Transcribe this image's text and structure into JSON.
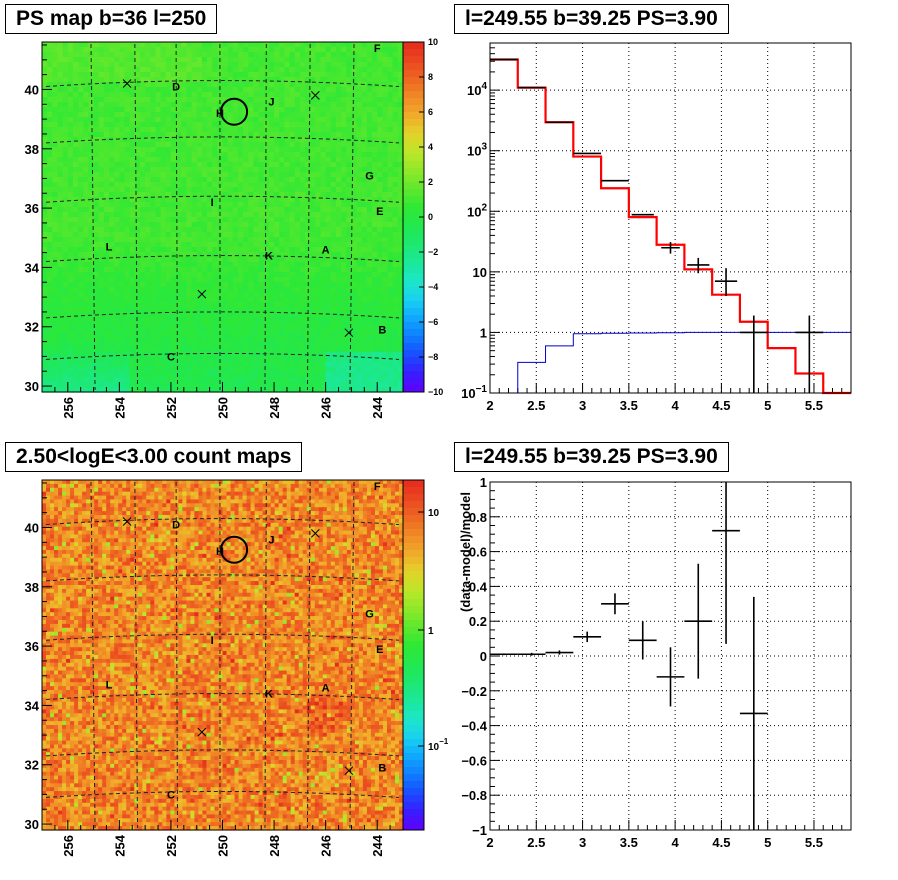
{
  "panels": {
    "map_top": {
      "title": "PS map b=36 l=250"
    },
    "spectrum": {
      "title": "l=249.55 b=39.25 PS=3.90"
    },
    "map_bottom": {
      "title": "2.50<logE<3.00 count maps"
    },
    "residual": {
      "title": "l=249.55 b=39.25 PS=3.90"
    }
  },
  "chart_data": [
    {
      "type": "heatmap",
      "title": "PS map b=36 l=250",
      "xlim": [
        257,
        243
      ],
      "ylim": [
        29.8,
        41.6
      ],
      "x_ticks": [
        "256",
        "254",
        "252",
        "250",
        "248",
        "246",
        "244"
      ],
      "y_ticks": [
        "30",
        "32",
        "34",
        "36",
        "38",
        "40"
      ],
      "colorbar": {
        "range": [
          -10,
          10
        ],
        "ticks": [
          "10",
          "8",
          "6",
          "4",
          "2",
          "0",
          "−2",
          "−4",
          "−6",
          "−8",
          "−10"
        ]
      },
      "sources": [
        {
          "label": "A",
          "l": 246.0,
          "b": 34.6
        },
        {
          "label": "B",
          "l": 243.8,
          "b": 31.9
        },
        {
          "label": "C",
          "l": 252.0,
          "b": 31.0
        },
        {
          "label": "D",
          "l": 251.8,
          "b": 40.1
        },
        {
          "label": "E",
          "l": 243.9,
          "b": 35.9
        },
        {
          "label": "F",
          "l": 244.0,
          "b": 41.4
        },
        {
          "label": "G",
          "l": 244.3,
          "b": 37.1
        },
        {
          "label": "H",
          "l": 250.1,
          "b": 39.2
        },
        {
          "label": "I",
          "l": 250.4,
          "b": 36.2
        },
        {
          "label": "J",
          "l": 248.1,
          "b": 39.6
        },
        {
          "label": "K",
          "l": 248.2,
          "b": 34.4
        },
        {
          "label": "L",
          "l": 254.4,
          "b": 34.7
        }
      ],
      "crosses": [
        [
          253.7,
          40.2
        ],
        [
          250.8,
          33.1
        ],
        [
          246.4,
          39.8
        ],
        [
          245.1,
          31.8
        ]
      ],
      "circle": {
        "l": 249.55,
        "b": 39.25
      }
    },
    {
      "type": "line",
      "title": "l=249.55 b=39.25 PS=3.90",
      "x_ticks": [
        "2",
        "2.5",
        "3",
        "3.5",
        "4",
        "4.5",
        "5",
        "5.5"
      ],
      "y_ticks": [
        "10^-1",
        "1",
        "10",
        "10^2",
        "10^3",
        "10^4"
      ],
      "xlim": [
        2.0,
        5.9
      ],
      "ylim": [
        0.1,
        60000
      ],
      "log_y": true,
      "grid": true,
      "bin_edges": [
        2.0,
        2.3,
        2.6,
        2.9,
        3.2,
        3.5,
        3.8,
        4.1,
        4.4,
        4.7,
        5.0,
        5.3,
        5.6,
        5.9
      ],
      "series": [
        {
          "kind": "model-histogram",
          "color": "#ff0000",
          "values": [
            32000,
            11000,
            2950,
            800,
            240,
            80,
            28,
            11,
            4.2,
            1.5,
            0.55,
            0.21,
            0.08
          ]
        },
        {
          "kind": "secondary-model",
          "color": "#0000cc",
          "values": [
            0.1,
            0.32,
            0.6,
            0.95,
            0.97,
            0.98,
            0.99,
            1.0,
            1.0,
            1.0,
            1.0,
            1.0,
            1.0
          ]
        },
        {
          "kind": "data-points",
          "color": "#000000",
          "points": [
            {
              "x": 2.15,
              "y": 32000
            },
            {
              "x": 2.45,
              "y": 11000
            },
            {
              "x": 2.75,
              "y": 2950
            },
            {
              "x": 3.05,
              "y": 900
            },
            {
              "x": 3.35,
              "y": 320,
              "xerr": 0.15
            },
            {
              "x": 3.65,
              "y": 88,
              "xerr": 0.12
            },
            {
              "x": 3.95,
              "y": 25,
              "xerr": 0.1,
              "ylo": 20,
              "yhi": 31
            },
            {
              "x": 4.25,
              "y": 13,
              "xerr": 0.12,
              "ylo": 9.5,
              "yhi": 17
            },
            {
              "x": 4.55,
              "y": 7,
              "xerr": 0.12,
              "ylo": 4.0,
              "yhi": 11.5
            },
            {
              "x": 4.85,
              "y": 1.0,
              "xerr": 0.15,
              "ylo": 0.1,
              "yhi": 1.9
            },
            {
              "x": 5.45,
              "y": 1.0,
              "xerr": 0.15,
              "ylo": 0.1,
              "yhi": 1.9
            }
          ]
        }
      ]
    },
    {
      "type": "heatmap",
      "title": "2.50<logE<3.00 count maps",
      "xlim": [
        257,
        243
      ],
      "ylim": [
        29.8,
        41.6
      ],
      "x_ticks": [
        "256",
        "254",
        "252",
        "250",
        "248",
        "246",
        "244"
      ],
      "y_ticks": [
        "30",
        "32",
        "34",
        "36",
        "38",
        "40"
      ],
      "colorbar": {
        "log": true,
        "ticks": [
          "10",
          "1",
          "10^-1"
        ]
      }
    },
    {
      "type": "scatter",
      "title": "l=249.55 b=39.25 PS=3.90",
      "ylabel": "(data-model)/model",
      "x_ticks": [
        "2",
        "2.5",
        "3",
        "3.5",
        "4",
        "4.5",
        "5",
        "5.5"
      ],
      "y_ticks": [
        "−1",
        "−0.8",
        "−0.6",
        "−0.4",
        "−0.2",
        "0",
        "0.2",
        "0.4",
        "0.6",
        "0.8",
        "1"
      ],
      "xlim": [
        2.0,
        5.9
      ],
      "ylim": [
        -1,
        1
      ],
      "grid": true,
      "points": [
        {
          "x": 2.15,
          "y": 0.01,
          "xerr": 0.15,
          "yerr": 0.005
        },
        {
          "x": 2.45,
          "y": 0.01,
          "xerr": 0.15,
          "yerr": 0.008
        },
        {
          "x": 2.75,
          "y": 0.02,
          "xerr": 0.15,
          "yerr": 0.012
        },
        {
          "x": 3.05,
          "y": 0.11,
          "xerr": 0.15,
          "yerr": 0.03
        },
        {
          "x": 3.35,
          "y": 0.3,
          "xerr": 0.15,
          "yerr": 0.06
        },
        {
          "x": 3.65,
          "y": 0.09,
          "xerr": 0.15,
          "yerr": 0.11
        },
        {
          "x": 3.95,
          "y": -0.12,
          "xerr": 0.15,
          "yerr": 0.17
        },
        {
          "x": 4.25,
          "y": 0.2,
          "xerr": 0.15,
          "yerr": 0.33
        },
        {
          "x": 4.55,
          "y": 0.72,
          "xerr": 0.15,
          "yerr": 0.65
        },
        {
          "x": 4.85,
          "y": -0.33,
          "xerr": 0.15,
          "yerr": 0.67
        }
      ]
    }
  ]
}
